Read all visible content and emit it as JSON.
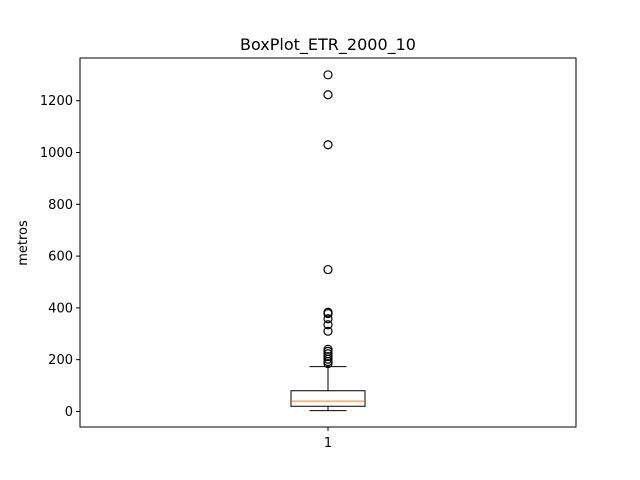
{
  "chart_data": {
    "type": "box",
    "title": "BoxPlot_ETR_2000_10",
    "xlabel": "",
    "ylabel": "metros",
    "ylim": [
      -60,
      1365
    ],
    "yticks": [
      0,
      200,
      400,
      600,
      800,
      1000,
      1200
    ],
    "categories": [
      "1"
    ],
    "grid": false,
    "box": {
      "whisker_low": 3,
      "q1": 20,
      "median": 40,
      "q3": 80,
      "whisker_high": 173,
      "fliers": [
        1300,
        1223,
        1030,
        548,
        383,
        378,
        358,
        335,
        310,
        240,
        232,
        223,
        212,
        202,
        193,
        185
      ]
    },
    "colors": {
      "box": "#000000",
      "median": "#ff7f0e",
      "flier": "#000000"
    }
  }
}
